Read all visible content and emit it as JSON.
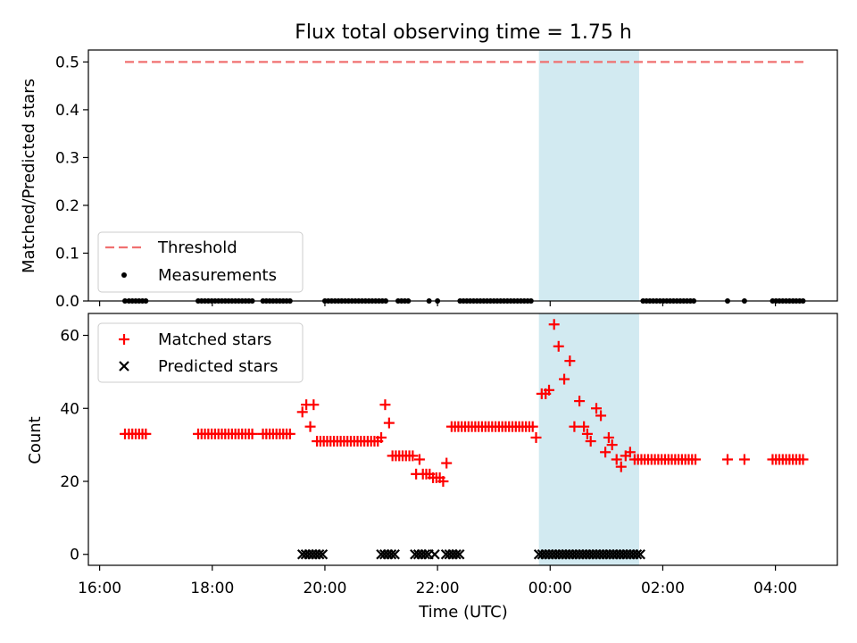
{
  "chart_data": {
    "title": "Flux total observing time = 1.75 h",
    "xlabel": "Time (UTC)",
    "x_unit": "hours since 16:00 UTC",
    "xlim": [
      -0.2,
      13.1
    ],
    "xticks": [
      {
        "value": 0,
        "label": "16:00"
      },
      {
        "value": 2,
        "label": "18:00"
      },
      {
        "value": 4,
        "label": "20:00"
      },
      {
        "value": 6,
        "label": "22:00"
      },
      {
        "value": 8,
        "label": "00:00"
      },
      {
        "value": 10,
        "label": "02:00"
      },
      {
        "value": 12,
        "label": "04:00"
      }
    ],
    "highlight_span": [
      7.8,
      9.58
    ],
    "highlight_color": "#add8e6",
    "panels": [
      {
        "type": "line+scatter",
        "ylabel": "Matched/Predicted stars",
        "ylim": [
          0,
          0.525
        ],
        "yticks": [
          "0.0",
          "0.1",
          "0.2",
          "0.3",
          "0.4",
          "0.5"
        ],
        "threshold": {
          "name": "Threshold",
          "value": 0.5,
          "x_range": [
            0.45,
            12.5
          ],
          "color": "#f07070"
        },
        "series": [
          {
            "name": "Measurements",
            "color": "#000000",
            "x": [
              0.45,
              0.52,
              0.58,
              0.64,
              0.7,
              0.76,
              0.82,
              1.75,
              1.81,
              1.87,
              1.93,
              1.99,
              2.05,
              2.11,
              2.17,
              2.23,
              2.29,
              2.35,
              2.41,
              2.47,
              2.53,
              2.59,
              2.65,
              2.71,
              2.9,
              2.96,
              3.02,
              3.08,
              3.14,
              3.2,
              3.26,
              3.32,
              3.38,
              4.0,
              4.06,
              4.12,
              4.18,
              4.24,
              4.3,
              4.36,
              4.42,
              4.48,
              4.54,
              4.6,
              4.66,
              4.72,
              4.78,
              4.84,
              4.9,
              4.96,
              5.02,
              5.08,
              5.3,
              5.36,
              5.42,
              5.48,
              5.85,
              6.0,
              6.4,
              6.46,
              6.52,
              6.58,
              6.64,
              6.7,
              6.76,
              6.82,
              6.88,
              6.94,
              7.0,
              7.06,
              7.12,
              7.18,
              7.24,
              7.3,
              7.36,
              7.42,
              7.48,
              7.54,
              7.6,
              7.66,
              9.65,
              9.71,
              9.77,
              9.83,
              9.89,
              9.95,
              10.01,
              10.07,
              10.13,
              10.19,
              10.25,
              10.31,
              10.37,
              10.43,
              10.49,
              10.55,
              11.15,
              11.45,
              11.95,
              12.01,
              12.07,
              12.13,
              12.19,
              12.25,
              12.31,
              12.37,
              12.43,
              12.49
            ],
            "y": 0.0
          }
        ],
        "legend": {
          "location": "lower-left",
          "entries": [
            "Threshold",
            "Measurements"
          ]
        }
      },
      {
        "type": "scatter",
        "ylabel": "Count",
        "ylim": [
          -3,
          66
        ],
        "yticks": [
          "0",
          "20",
          "40",
          "60"
        ],
        "series": [
          {
            "name": "Matched stars",
            "marker": "plus",
            "color": "#ff0000",
            "points": [
              [
                0.45,
                33
              ],
              [
                0.52,
                33
              ],
              [
                0.58,
                33
              ],
              [
                0.64,
                33
              ],
              [
                0.7,
                33
              ],
              [
                0.76,
                33
              ],
              [
                0.82,
                33
              ],
              [
                1.75,
                33
              ],
              [
                1.81,
                33
              ],
              [
                1.87,
                33
              ],
              [
                1.93,
                33
              ],
              [
                1.99,
                33
              ],
              [
                2.05,
                33
              ],
              [
                2.11,
                33
              ],
              [
                2.17,
                33
              ],
              [
                2.23,
                33
              ],
              [
                2.29,
                33
              ],
              [
                2.35,
                33
              ],
              [
                2.41,
                33
              ],
              [
                2.47,
                33
              ],
              [
                2.53,
                33
              ],
              [
                2.59,
                33
              ],
              [
                2.65,
                33
              ],
              [
                2.71,
                33
              ],
              [
                2.9,
                33
              ],
              [
                2.96,
                33
              ],
              [
                3.02,
                33
              ],
              [
                3.08,
                33
              ],
              [
                3.14,
                33
              ],
              [
                3.2,
                33
              ],
              [
                3.26,
                33
              ],
              [
                3.32,
                33
              ],
              [
                3.38,
                33
              ],
              [
                3.6,
                39
              ],
              [
                3.67,
                41
              ],
              [
                3.74,
                35
              ],
              [
                3.8,
                41
              ],
              [
                3.86,
                31
              ],
              [
                3.92,
                31
              ],
              [
                3.98,
                31
              ],
              [
                4.04,
                31
              ],
              [
                4.1,
                31
              ],
              [
                4.16,
                31
              ],
              [
                4.22,
                31
              ],
              [
                4.28,
                31
              ],
              [
                4.34,
                31
              ],
              [
                4.4,
                31
              ],
              [
                4.46,
                31
              ],
              [
                4.52,
                31
              ],
              [
                4.58,
                31
              ],
              [
                4.64,
                31
              ],
              [
                4.7,
                31
              ],
              [
                4.76,
                31
              ],
              [
                4.82,
                31
              ],
              [
                4.88,
                31
              ],
              [
                4.94,
                31
              ],
              [
                5.0,
                32
              ],
              [
                5.07,
                41
              ],
              [
                5.14,
                36
              ],
              [
                5.2,
                27
              ],
              [
                5.26,
                27
              ],
              [
                5.32,
                27
              ],
              [
                5.38,
                27
              ],
              [
                5.44,
                27
              ],
              [
                5.5,
                27
              ],
              [
                5.56,
                27
              ],
              [
                5.62,
                22
              ],
              [
                5.68,
                26
              ],
              [
                5.74,
                22
              ],
              [
                5.8,
                22
              ],
              [
                5.86,
                22
              ],
              [
                5.92,
                21
              ],
              [
                5.98,
                21
              ],
              [
                6.04,
                21
              ],
              [
                6.1,
                20
              ],
              [
                6.16,
                25
              ],
              [
                6.25,
                35
              ],
              [
                6.31,
                35
              ],
              [
                6.37,
                35
              ],
              [
                6.43,
                35
              ],
              [
                6.49,
                35
              ],
              [
                6.55,
                35
              ],
              [
                6.61,
                35
              ],
              [
                6.67,
                35
              ],
              [
                6.73,
                35
              ],
              [
                6.79,
                35
              ],
              [
                6.85,
                35
              ],
              [
                6.91,
                35
              ],
              [
                6.97,
                35
              ],
              [
                7.03,
                35
              ],
              [
                7.09,
                35
              ],
              [
                7.15,
                35
              ],
              [
                7.21,
                35
              ],
              [
                7.27,
                35
              ],
              [
                7.33,
                35
              ],
              [
                7.39,
                35
              ],
              [
                7.45,
                35
              ],
              [
                7.51,
                35
              ],
              [
                7.57,
                35
              ],
              [
                7.63,
                35
              ],
              [
                7.69,
                35
              ],
              [
                7.75,
                32
              ],
              [
                7.85,
                44
              ],
              [
                7.92,
                44
              ],
              [
                7.98,
                45
              ],
              [
                8.07,
                63
              ],
              [
                8.15,
                57
              ],
              [
                8.25,
                48
              ],
              [
                8.35,
                53
              ],
              [
                8.43,
                35
              ],
              [
                8.52,
                42
              ],
              [
                8.6,
                35
              ],
              [
                8.66,
                33
              ],
              [
                8.72,
                31
              ],
              [
                8.82,
                40
              ],
              [
                8.9,
                38
              ],
              [
                8.98,
                28
              ],
              [
                9.04,
                32
              ],
              [
                9.1,
                30
              ],
              [
                9.18,
                26
              ],
              [
                9.26,
                24
              ],
              [
                9.34,
                27
              ],
              [
                9.42,
                28
              ],
              [
                9.5,
                26
              ],
              [
                9.56,
                26
              ],
              [
                9.62,
                26
              ],
              [
                9.68,
                26
              ],
              [
                9.74,
                26
              ],
              [
                9.8,
                26
              ],
              [
                9.86,
                26
              ],
              [
                9.92,
                26
              ],
              [
                9.98,
                26
              ],
              [
                10.04,
                26
              ],
              [
                10.1,
                26
              ],
              [
                10.16,
                26
              ],
              [
                10.22,
                26
              ],
              [
                10.28,
                26
              ],
              [
                10.34,
                26
              ],
              [
                10.4,
                26
              ],
              [
                10.46,
                26
              ],
              [
                10.52,
                26
              ],
              [
                10.58,
                26
              ],
              [
                11.15,
                26
              ],
              [
                11.45,
                26
              ],
              [
                11.95,
                26
              ],
              [
                12.01,
                26
              ],
              [
                12.07,
                26
              ],
              [
                12.13,
                26
              ],
              [
                12.19,
                26
              ],
              [
                12.25,
                26
              ],
              [
                12.31,
                26
              ],
              [
                12.37,
                26
              ],
              [
                12.43,
                26
              ],
              [
                12.49,
                26
              ]
            ]
          },
          {
            "name": "Predicted stars",
            "marker": "x",
            "color": "#000000",
            "points": [
              [
                3.6,
                0
              ],
              [
                3.66,
                0
              ],
              [
                3.72,
                0
              ],
              [
                3.78,
                0
              ],
              [
                3.84,
                0
              ],
              [
                3.9,
                0
              ],
              [
                3.96,
                0
              ],
              [
                5.0,
                0
              ],
              [
                5.06,
                0
              ],
              [
                5.12,
                0
              ],
              [
                5.18,
                0
              ],
              [
                5.24,
                0
              ],
              [
                5.6,
                0
              ],
              [
                5.66,
                0
              ],
              [
                5.72,
                0
              ],
              [
                5.78,
                0
              ],
              [
                5.84,
                0
              ],
              [
                5.95,
                0
              ],
              [
                6.15,
                0
              ],
              [
                6.21,
                0
              ],
              [
                6.27,
                0
              ],
              [
                6.33,
                0
              ],
              [
                6.39,
                0
              ],
              [
                7.8,
                0
              ],
              [
                7.86,
                0
              ],
              [
                7.92,
                0
              ],
              [
                7.98,
                0
              ],
              [
                8.04,
                0
              ],
              [
                8.1,
                0
              ],
              [
                8.16,
                0
              ],
              [
                8.22,
                0
              ],
              [
                8.28,
                0
              ],
              [
                8.34,
                0
              ],
              [
                8.4,
                0
              ],
              [
                8.46,
                0
              ],
              [
                8.52,
                0
              ],
              [
                8.58,
                0
              ],
              [
                8.64,
                0
              ],
              [
                8.7,
                0
              ],
              [
                8.76,
                0
              ],
              [
                8.82,
                0
              ],
              [
                8.88,
                0
              ],
              [
                8.94,
                0
              ],
              [
                9.0,
                0
              ],
              [
                9.06,
                0
              ],
              [
                9.12,
                0
              ],
              [
                9.18,
                0
              ],
              [
                9.24,
                0
              ],
              [
                9.3,
                0
              ],
              [
                9.36,
                0
              ],
              [
                9.42,
                0
              ],
              [
                9.48,
                0
              ],
              [
                9.54,
                0
              ],
              [
                9.6,
                0
              ]
            ]
          }
        ],
        "legend": {
          "location": "upper-left",
          "entries": [
            "Matched stars",
            "Predicted stars"
          ]
        }
      }
    ]
  }
}
